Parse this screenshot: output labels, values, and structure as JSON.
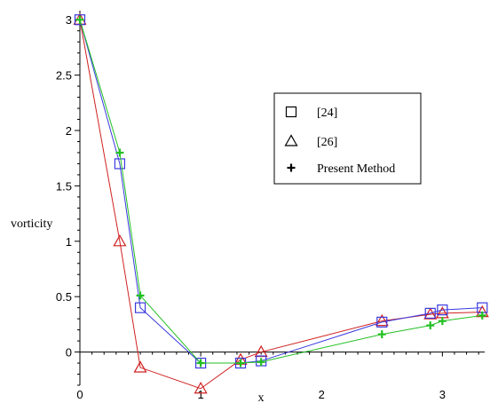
{
  "chart_data": {
    "type": "line",
    "xlabel": "x",
    "ylabel": "vorticity",
    "xlim": [
      0,
      3.35
    ],
    "ylim": [
      -0.3,
      3.05
    ],
    "x_ticks": [
      0,
      1,
      2,
      3
    ],
    "y_ticks": [
      0,
      0.5,
      1,
      1.5,
      2,
      2.5,
      3
    ],
    "x_tick_labels": [
      "0",
      "1",
      "2",
      "3"
    ],
    "y_tick_labels": [
      "0",
      "0.5",
      "1",
      "1.5",
      "2",
      "2.5",
      "3"
    ],
    "legend_position": "right",
    "grid": false,
    "series": [
      {
        "name": "[24]",
        "marker": "square",
        "color": "#3a3ae0",
        "x": [
          0,
          0.33,
          0.5,
          1.0,
          1.33,
          1.5,
          2.5,
          2.9,
          3.0,
          3.33
        ],
        "y": [
          3.0,
          1.7,
          0.4,
          -0.1,
          -0.1,
          -0.08,
          0.27,
          0.35,
          0.38,
          0.4
        ]
      },
      {
        "name": "[26]",
        "marker": "triangle",
        "color": "#d02020",
        "x": [
          0,
          0.33,
          0.5,
          1.0,
          1.33,
          1.5,
          2.5,
          2.9,
          3.0,
          3.33
        ],
        "y": [
          3.0,
          1.0,
          -0.14,
          -0.33,
          -0.07,
          0.0,
          0.28,
          0.34,
          0.35,
          0.36
        ]
      },
      {
        "name": "Present Method",
        "marker": "plus",
        "color": "#22c022",
        "x": [
          0,
          0.33,
          0.5,
          1.0,
          1.33,
          1.5,
          2.5,
          2.9,
          3.0,
          3.33
        ],
        "y": [
          3.0,
          1.8,
          0.51,
          -0.1,
          -0.1,
          -0.09,
          0.16,
          0.24,
          0.28,
          0.33
        ]
      }
    ]
  }
}
